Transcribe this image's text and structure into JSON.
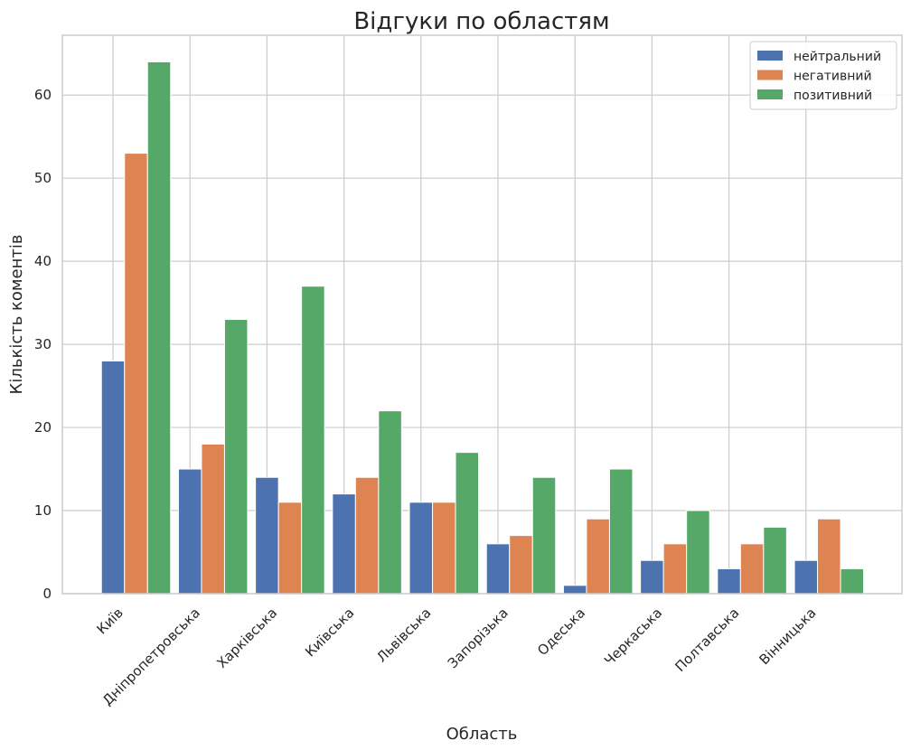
{
  "chart_data": {
    "type": "bar",
    "title": "Відгуки по областям",
    "xlabel": "Область",
    "ylabel": "Кількість коментів",
    "categories": [
      "Київ",
      "Дніпропетровська",
      "Харківська",
      "Київська",
      "Львівська",
      "Запорізька",
      "Одеська",
      "Черкаська",
      "Полтавська",
      "Вінницька"
    ],
    "series": [
      {
        "name": "нейтральний",
        "color": "#4c72b0",
        "values": [
          28,
          15,
          14,
          12,
          11,
          6,
          1,
          4,
          3,
          4
        ]
      },
      {
        "name": "негативний",
        "color": "#dd8452",
        "values": [
          53,
          18,
          11,
          14,
          11,
          7,
          9,
          6,
          6,
          9
        ]
      },
      {
        "name": "позитивний",
        "color": "#55a868",
        "values": [
          64,
          33,
          37,
          22,
          17,
          14,
          15,
          10,
          8,
          3
        ]
      }
    ],
    "yticks": [
      0,
      10,
      20,
      30,
      40,
      50,
      60
    ],
    "ylim": [
      0,
      67.2
    ],
    "grid": true,
    "legend_position": "top-right",
    "background": "#ffffff",
    "grid_color": "#cccccc"
  }
}
